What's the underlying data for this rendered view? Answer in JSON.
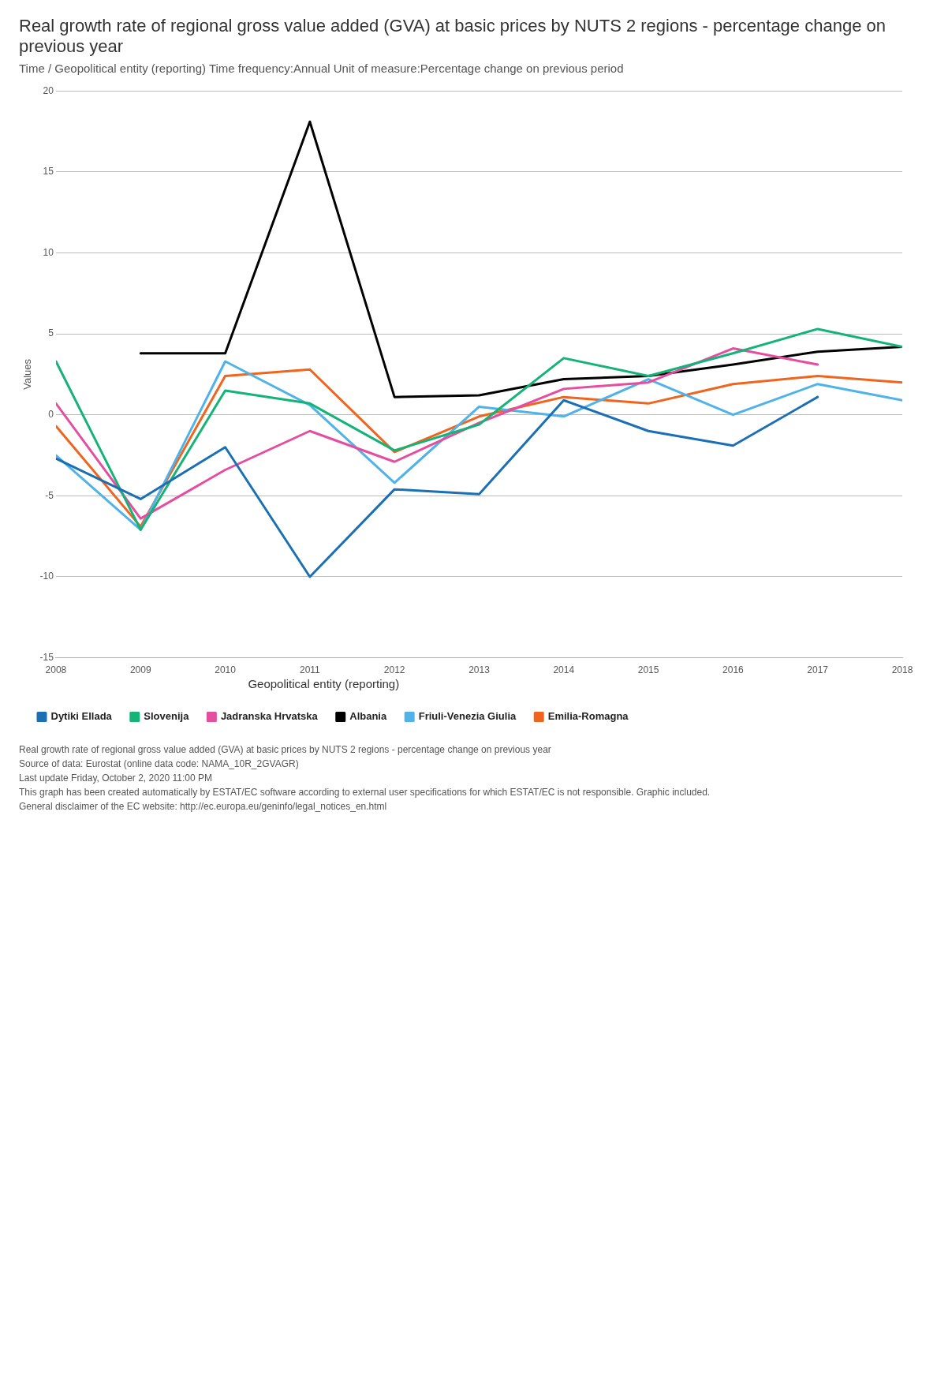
{
  "chart_data": {
    "type": "line",
    "title": "Real growth rate of regional gross value added (GVA) at basic prices by NUTS 2 regions - percentage change on previous year",
    "subtitle": "Time / Geopolitical entity (reporting)  Time frequency:Annual  Unit of measure:Percentage change on previous period",
    "ylabel": "Values",
    "legend_title": "Geopolitical entity (reporting)",
    "x": [
      2008,
      2009,
      2010,
      2011,
      2012,
      2013,
      2014,
      2015,
      2016,
      2017,
      2018
    ],
    "series": [
      {
        "name": "Dytiki Ellada",
        "color": "#1a6fb5",
        "values": [
          -2.7,
          -5.2,
          -2.0,
          -10.0,
          -4.6,
          -4.9,
          0.9,
          -1.0,
          -1.9,
          1.1,
          null
        ]
      },
      {
        "name": "Slovenija",
        "color": "#14b478",
        "values": [
          3.3,
          -7.1,
          1.5,
          0.7,
          -2.2,
          -0.6,
          3.5,
          2.4,
          3.8,
          5.3,
          4.2
        ]
      },
      {
        "name": "Jadranska Hrvatska",
        "color": "#e64ca0",
        "values": [
          0.7,
          -6.4,
          -3.4,
          -1.0,
          -2.9,
          -0.5,
          1.6,
          2.0,
          4.1,
          3.1,
          null
        ]
      },
      {
        "name": "Albania",
        "color": "#000000",
        "values": [
          null,
          3.8,
          3.8,
          18.1,
          1.1,
          1.2,
          2.2,
          2.4,
          3.1,
          3.9,
          4.2
        ]
      },
      {
        "name": "Friuli-Venezia Giulia",
        "color": "#4fb3ea",
        "values": [
          -2.5,
          -7.1,
          3.3,
          0.6,
          -4.2,
          0.5,
          -0.1,
          2.2,
          0.0,
          1.9,
          0.9
        ]
      },
      {
        "name": "Emilia-Romagna",
        "color": "#f0641e",
        "values": [
          -0.7,
          -6.9,
          2.4,
          2.8,
          -2.3,
          -0.1,
          1.1,
          0.7,
          1.9,
          2.4,
          2.0
        ]
      }
    ],
    "xlim": [
      2008,
      2018
    ],
    "xticks": [
      2008,
      2009,
      2010,
      2011,
      2012,
      2013,
      2014,
      2015,
      2016,
      2017,
      2018
    ],
    "ylim": [
      -15,
      20
    ],
    "yticks": [
      -15,
      -10,
      -5,
      0,
      5,
      10,
      15,
      20
    ],
    "grid": "y",
    "legend": "bottom",
    "marker": "none",
    "line_style": "solid",
    "annotations": [
      "Real growth rate of regional gross value added (GVA) at basic prices by NUTS 2 regions - percentage change on previous year",
      "Source of data: Eurostat (online data code: NAMA_10R_2GVAGR)",
      "Last update Friday, October 2, 2020 11:00 PM",
      "This graph has been created automatically by ESTAT/EC software according to external user specifications for which ESTAT/EC is not responsible. Graphic included.",
      "General disclaimer of the EC website: http://ec.europa.eu/geninfo/legal_notices_en.html"
    ]
  }
}
